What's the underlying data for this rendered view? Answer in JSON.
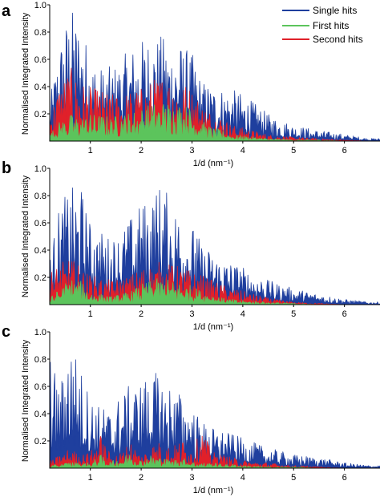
{
  "colors": {
    "single": "#1f3f9e",
    "first": "#5cc45c",
    "second": "#e0202a"
  },
  "legend": {
    "placement": "top-right",
    "entries": [
      "Single hits",
      "First hits",
      "Second hits"
    ]
  },
  "chart_data": [
    {
      "panel": "a",
      "type": "area",
      "xlabel": "1/d (nm⁻¹)",
      "ylabel": "Normalised Integrated Intensity",
      "xlim": [
        0.2,
        6.7
      ],
      "ylim": [
        0,
        1.0
      ],
      "xticks": [
        1,
        2,
        3,
        4,
        5,
        6
      ],
      "yticks": [
        0.2,
        0.4,
        0.6,
        0.8,
        1.0
      ],
      "series": [
        {
          "name": "Single hits",
          "x": [
            0.2,
            0.4,
            0.6,
            0.8,
            1.0,
            1.2,
            1.4,
            1.6,
            1.8,
            2.0,
            2.2,
            2.4,
            2.6,
            2.8,
            3.0,
            3.2,
            3.4,
            3.6,
            3.8,
            4.0,
            4.5,
            5.0,
            5.5,
            6.0,
            6.5
          ],
          "values": [
            0.3,
            0.75,
            1.0,
            0.9,
            0.65,
            0.55,
            0.55,
            0.6,
            0.7,
            0.75,
            0.8,
            0.78,
            0.75,
            0.72,
            0.65,
            0.45,
            0.42,
            0.4,
            0.38,
            0.35,
            0.2,
            0.12,
            0.08,
            0.05,
            0.02
          ]
        },
        {
          "name": "First hits",
          "x": [
            0.2,
            0.4,
            0.6,
            0.8,
            1.0,
            1.2,
            1.4,
            1.6,
            1.8,
            2.0,
            2.2,
            2.4,
            2.6,
            2.8,
            3.0,
            3.2,
            3.4,
            3.6,
            3.8,
            4.0,
            4.5,
            5.0,
            5.5,
            6.0,
            6.5
          ],
          "values": [
            0.05,
            0.15,
            0.2,
            0.18,
            0.2,
            0.2,
            0.18,
            0.2,
            0.22,
            0.25,
            0.28,
            0.3,
            0.3,
            0.28,
            0.25,
            0.15,
            0.1,
            0.08,
            0.05,
            0.04,
            0.02,
            0.01,
            0.01,
            0.0,
            0.0
          ]
        },
        {
          "name": "Second hits",
          "x": [
            0.2,
            0.4,
            0.6,
            0.8,
            1.0,
            1.2,
            1.4,
            1.6,
            1.8,
            2.0,
            2.2,
            2.4,
            2.6,
            2.8,
            3.0,
            3.2,
            3.4,
            3.6,
            3.8,
            4.0,
            4.5,
            5.0,
            5.5,
            6.0,
            6.5
          ],
          "values": [
            0.2,
            0.45,
            0.55,
            0.45,
            0.4,
            0.38,
            0.35,
            0.35,
            0.38,
            0.4,
            0.45,
            0.5,
            0.48,
            0.45,
            0.4,
            0.28,
            0.22,
            0.18,
            0.12,
            0.1,
            0.05,
            0.03,
            0.02,
            0.01,
            0.0
          ]
        }
      ]
    },
    {
      "panel": "b",
      "type": "area",
      "xlabel": "1/d (nm⁻¹)",
      "ylabel": "Normalised Integrated Intensity",
      "xlim": [
        0.2,
        6.7
      ],
      "ylim": [
        0,
        1.0
      ],
      "xticks": [
        1,
        2,
        3,
        4,
        5,
        6
      ],
      "yticks": [
        0.2,
        0.4,
        0.6,
        0.8,
        1.0
      ],
      "series": [
        {
          "name": "Single hits",
          "x": [
            0.2,
            0.4,
            0.6,
            0.8,
            1.0,
            1.2,
            1.4,
            1.6,
            1.8,
            2.0,
            2.2,
            2.4,
            2.6,
            2.8,
            3.0,
            3.2,
            3.4,
            3.6,
            3.8,
            4.0,
            4.5,
            5.0,
            5.5,
            6.0,
            6.5
          ],
          "values": [
            0.35,
            0.75,
            0.85,
            0.9,
            0.6,
            0.55,
            0.5,
            0.55,
            0.65,
            0.75,
            0.82,
            0.92,
            0.75,
            0.7,
            0.6,
            0.45,
            0.4,
            0.35,
            0.32,
            0.28,
            0.18,
            0.12,
            0.08,
            0.04,
            0.02
          ]
        },
        {
          "name": "First hits",
          "x": [
            0.2,
            0.4,
            0.6,
            0.8,
            1.0,
            1.2,
            1.4,
            1.6,
            1.8,
            2.0,
            2.2,
            2.4,
            2.6,
            2.8,
            3.0,
            3.2,
            3.4,
            3.6,
            3.8,
            4.0,
            4.5,
            5.0,
            5.5,
            6.0,
            6.5
          ],
          "values": [
            0.05,
            0.12,
            0.2,
            0.18,
            0.1,
            0.08,
            0.06,
            0.08,
            0.1,
            0.15,
            0.18,
            0.2,
            0.18,
            0.16,
            0.14,
            0.1,
            0.08,
            0.05,
            0.04,
            0.03,
            0.02,
            0.01,
            0.0,
            0.0,
            0.0
          ]
        },
        {
          "name": "Second hits",
          "x": [
            0.2,
            0.4,
            0.6,
            0.8,
            1.0,
            1.2,
            1.4,
            1.6,
            1.8,
            2.0,
            2.2,
            2.4,
            2.6,
            2.8,
            3.0,
            3.2,
            3.4,
            3.6,
            3.8,
            4.0,
            4.5,
            5.0,
            5.5,
            6.0,
            6.5
          ],
          "values": [
            0.25,
            0.3,
            0.35,
            0.28,
            0.22,
            0.2,
            0.18,
            0.2,
            0.22,
            0.28,
            0.3,
            0.32,
            0.3,
            0.28,
            0.25,
            0.22,
            0.18,
            0.15,
            0.12,
            0.1,
            0.05,
            0.02,
            0.01,
            0.0,
            0.0
          ]
        }
      ]
    },
    {
      "panel": "c",
      "type": "area",
      "xlabel": "1/d (nm⁻¹)",
      "ylabel": "Normalised Integrated Intensity",
      "xlim": [
        0.2,
        6.7
      ],
      "ylim": [
        0,
        1.0
      ],
      "xticks": [
        1,
        2,
        3,
        4,
        5,
        6
      ],
      "yticks": [
        0.2,
        0.4,
        0.6,
        0.8,
        1.0
      ],
      "series": [
        {
          "name": "Single hits",
          "x": [
            0.2,
            0.4,
            0.6,
            0.8,
            1.0,
            1.2,
            1.4,
            1.6,
            1.8,
            2.0,
            2.2,
            2.4,
            2.6,
            2.8,
            3.0,
            3.2,
            3.4,
            3.6,
            3.8,
            4.0,
            4.5,
            5.0,
            5.5,
            6.0,
            6.5
          ],
          "values": [
            0.85,
            0.6,
            1.0,
            0.75,
            0.55,
            0.45,
            0.45,
            0.55,
            0.62,
            0.65,
            0.72,
            0.68,
            0.62,
            0.55,
            0.45,
            0.35,
            0.3,
            0.28,
            0.25,
            0.22,
            0.15,
            0.1,
            0.08,
            0.04,
            0.02
          ]
        },
        {
          "name": "First hits",
          "x": [
            0.2,
            0.4,
            0.6,
            0.8,
            1.0,
            1.2,
            1.4,
            1.6,
            1.8,
            2.0,
            2.2,
            2.4,
            2.6,
            2.8,
            3.0,
            3.2,
            3.4,
            3.6,
            3.8,
            4.0,
            4.5,
            5.0,
            5.5,
            6.0,
            6.5
          ],
          "values": [
            0.02,
            0.03,
            0.05,
            0.04,
            0.04,
            0.1,
            0.05,
            0.08,
            0.12,
            0.06,
            0.1,
            0.08,
            0.06,
            0.08,
            0.05,
            0.04,
            0.04,
            0.03,
            0.03,
            0.02,
            0.01,
            0.01,
            0.0,
            0.0,
            0.0
          ]
        },
        {
          "name": "Second hits",
          "x": [
            0.2,
            0.4,
            0.6,
            0.8,
            1.0,
            1.2,
            1.4,
            1.6,
            1.8,
            2.0,
            2.2,
            2.4,
            2.6,
            2.8,
            3.0,
            3.2,
            3.4,
            3.6,
            3.8,
            4.0,
            4.5,
            5.0,
            5.5,
            6.0,
            6.5
          ],
          "values": [
            0.05,
            0.1,
            0.15,
            0.1,
            0.12,
            0.25,
            0.1,
            0.12,
            0.2,
            0.1,
            0.18,
            0.2,
            0.15,
            0.22,
            0.15,
            0.28,
            0.12,
            0.1,
            0.08,
            0.06,
            0.04,
            0.02,
            0.01,
            0.0,
            0.0
          ]
        }
      ]
    }
  ]
}
